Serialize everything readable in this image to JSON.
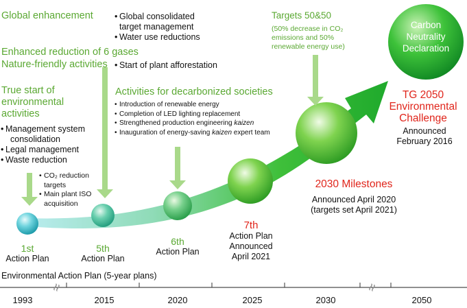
{
  "global": {
    "title": "Global enhancement",
    "items": [
      "Global consolidated",
      "target management",
      "Water use reductions"
    ]
  },
  "enhanced": {
    "title_line1": "Enhanced reduction of 6 gases",
    "title_line2": "Nature-friendly activities",
    "item": "Start of plant afforestation"
  },
  "true_start": {
    "title_line1": "True start of",
    "title_line2": "environmental",
    "title_line3": "activities",
    "items": [
      "Management system",
      "consolidation",
      "Legal management",
      "Waste reduction"
    ]
  },
  "first_notes": {
    "items": [
      "CO₂ reduction",
      "targets",
      "Main plant ISO",
      "acquisition"
    ]
  },
  "decarb": {
    "title": "Activities for decarbonized societies",
    "items": [
      {
        "pre": "Introduction of renewable energy",
        "em": "",
        "post": ""
      },
      {
        "pre": "Completion of LED lighting replacement",
        "em": "",
        "post": ""
      },
      {
        "pre": "Strengthened production engineering ",
        "em": "kaizen",
        "post": ""
      },
      {
        "pre": "Inauguration of energy-saving ",
        "em": "kaizen",
        "post": " expert team"
      }
    ]
  },
  "targets": {
    "title": "Targets 50&50",
    "line1": "(50% decrease in CO₂",
    "line2": "emissions and 50%",
    "line3": "renewable energy use)"
  },
  "carbon": {
    "line1": "Carbon",
    "line2": "Neutrality",
    "line3": "Declaration"
  },
  "tg2050": {
    "line1": "TG 2050",
    "line2": "Environmental",
    "line3": "Challenge",
    "ann1": "Announced",
    "ann2": "February 2016"
  },
  "milestones": {
    "title": "2030 Milestones",
    "ann": "Announced April 2020",
    "ann2": "(targets set April 2021)"
  },
  "plans": {
    "p1": {
      "num": "1st",
      "label": "Action Plan"
    },
    "p5": {
      "num": "5th",
      "label": "Action Plan"
    },
    "p6": {
      "num": "6th",
      "label": "Action Plan"
    },
    "p7": {
      "num": "7th",
      "label1": "Action Plan",
      "label2": "Announced",
      "label3": "April 2021"
    }
  },
  "eap": "Environmental Action Plan (5-year plans)",
  "axis": {
    "years": [
      "1993",
      "2015",
      "2020",
      "2025",
      "2030",
      "2050"
    ],
    "break_symbol": "≈"
  },
  "colors": {
    "green_text": "#5aa832",
    "red_text": "#e0251b",
    "arrow_green": "#3fbf3a",
    "sphere_cyan": "#5fd0dc"
  }
}
